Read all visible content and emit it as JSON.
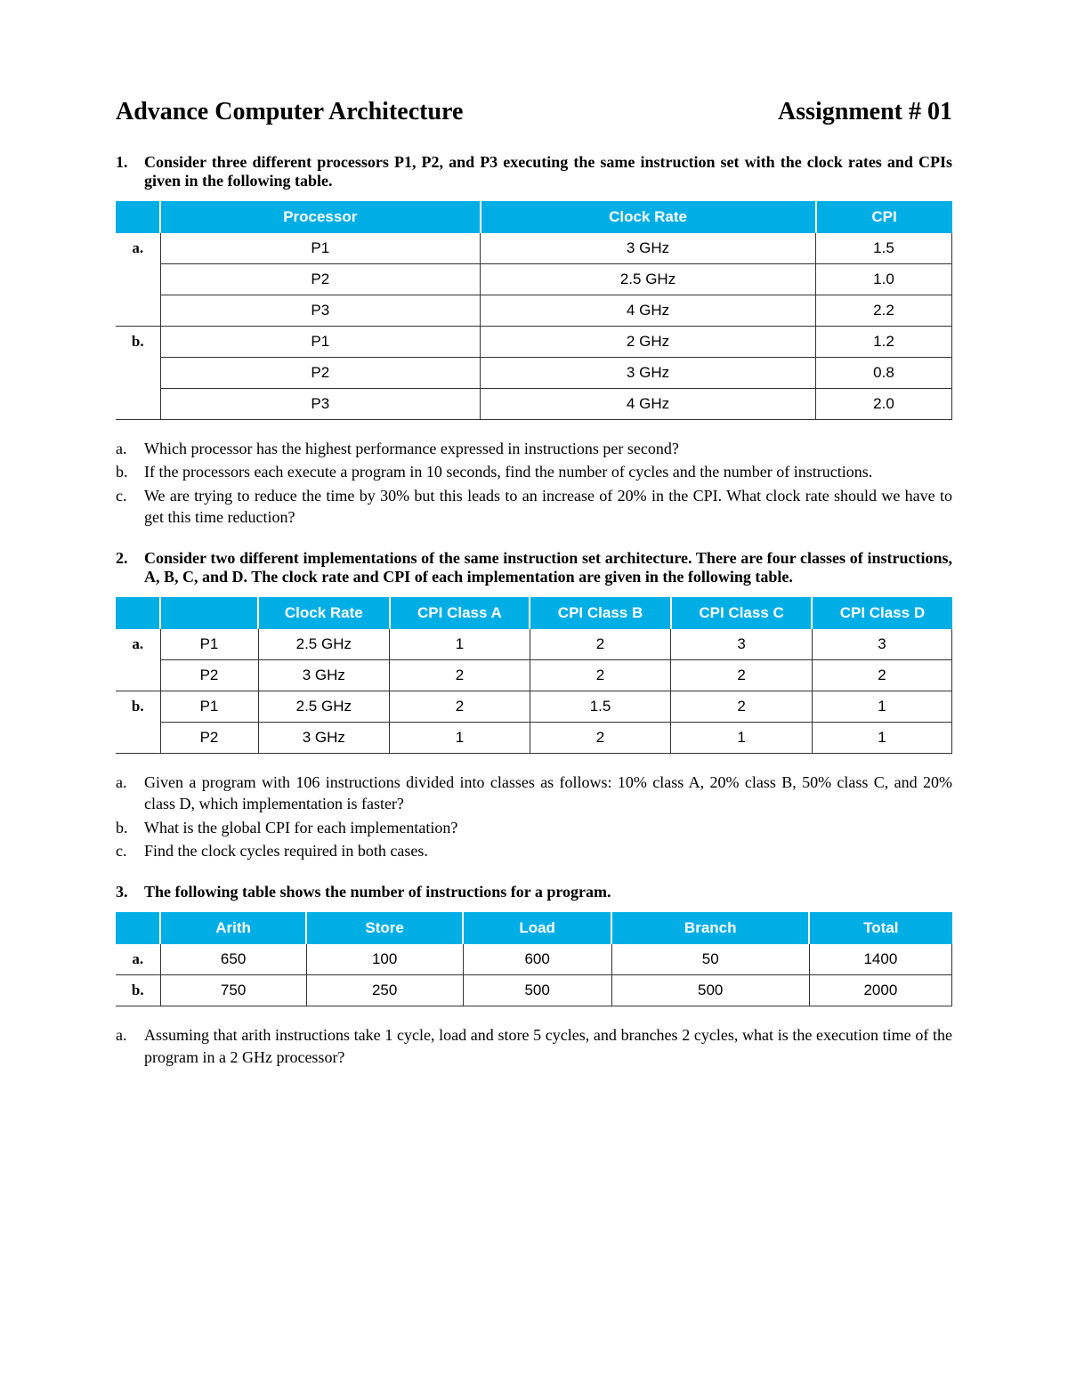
{
  "header": {
    "course": "Advance Computer Architecture",
    "assignment": "Assignment # 01"
  },
  "q1": {
    "num": "1.",
    "text": "Consider three different processors P1, P2, and P3 executing the same instruction set with the clock rates and CPIs given in the following table.",
    "table": {
      "header_bg": "#00aee6",
      "header_fg": "#ffffff",
      "columns": [
        "",
        "Processor",
        "Clock Rate",
        "CPI"
      ],
      "groups": [
        {
          "label": "a.",
          "rows": [
            [
              "P1",
              "3 GHz",
              "1.5"
            ],
            [
              "P2",
              "2.5 GHz",
              "1.0"
            ],
            [
              "P3",
              "4 GHz",
              "2.2"
            ]
          ]
        },
        {
          "label": "b.",
          "rows": [
            [
              "P1",
              "2 GHz",
              "1.2"
            ],
            [
              "P2",
              "3 GHz",
              "0.8"
            ],
            [
              "P3",
              "4 GHz",
              "2.0"
            ]
          ]
        }
      ]
    },
    "subs": [
      {
        "m": "a.",
        "t": "Which processor has the highest performance expressed in instructions per second?"
      },
      {
        "m": "b.",
        "t": "If the processors each execute a program in 10 seconds, find the number of cycles and the number of instructions."
      },
      {
        "m": "c.",
        "t": "We are trying to reduce the time by 30% but this leads to an increase of 20% in the CPI. What clock rate should we have to get this time reduction?"
      }
    ]
  },
  "q2": {
    "num": "2.",
    "text": "Consider two different implementations of the same instruction set architecture. There are four classes of instructions, A, B, C, and D. The clock rate and CPI of each implementation are given in the following table.",
    "table": {
      "columns": [
        "",
        "",
        "Clock Rate",
        "CPI Class A",
        "CPI Class B",
        "CPI Class C",
        "CPI Class D"
      ],
      "groups": [
        {
          "label": "a.",
          "rows": [
            [
              "P1",
              "2.5 GHz",
              "1",
              "2",
              "3",
              "3"
            ],
            [
              "P2",
              "3 GHz",
              "2",
              "2",
              "2",
              "2"
            ]
          ]
        },
        {
          "label": "b.",
          "rows": [
            [
              "P1",
              "2.5 GHz",
              "2",
              "1.5",
              "2",
              "1"
            ],
            [
              "P2",
              "3 GHz",
              "1",
              "2",
              "1",
              "1"
            ]
          ]
        }
      ]
    },
    "subs": [
      {
        "m": "a.",
        "t": "Given a program with 106 instructions divided into classes as follows: 10% class A, 20% class B, 50% class C, and 20% class D, which implementation is faster?"
      },
      {
        "m": "b.",
        "t": "What is the global CPI for each implementation?"
      },
      {
        "m": "c.",
        "t": "Find the clock cycles required in both cases."
      }
    ]
  },
  "q3": {
    "num": "3.",
    "text": "The following table shows the number of instructions for a program.",
    "table": {
      "columns": [
        "",
        "Arith",
        "Store",
        "Load",
        "Branch",
        "Total"
      ],
      "rows": [
        {
          "label": "a.",
          "cells": [
            "650",
            "100",
            "600",
            "50",
            "1400"
          ]
        },
        {
          "label": "b.",
          "cells": [
            "750",
            "250",
            "500",
            "500",
            "2000"
          ]
        }
      ]
    },
    "subs": [
      {
        "m": "a.",
        "t": "Assuming that arith instructions take 1 cycle, load and store 5 cycles, and branches 2 cycles, what is the execution time of the program in a 2 GHz processor?"
      }
    ]
  }
}
